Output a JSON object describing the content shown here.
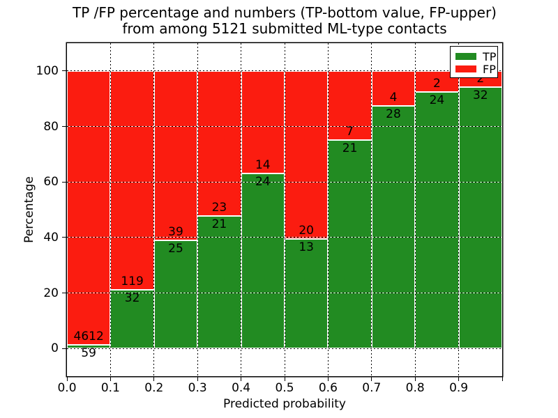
{
  "figure": {
    "title_line1": "TP /FP percentage and numbers (TP-bottom value, FP-upper)",
    "title_line2": "from among 5121 submitted ML-type contacts"
  },
  "chart_data": {
    "type": "bar",
    "stacked": true,
    "normalized": "percent_per_bin",
    "title": "TP /FP percentage and numbers (TP-bottom value, FP-upper) from among 5121 submitted ML-type contacts",
    "xlabel": "Predicted probability",
    "ylabel": "Percentage",
    "bins": [
      "0.0-0.1",
      "0.1-0.2",
      "0.2-0.3",
      "0.3-0.4",
      "0.4-0.5",
      "0.5-0.6",
      "0.6-0.7",
      "0.7-0.8",
      "0.8-0.9",
      "0.9-1.0"
    ],
    "series": [
      {
        "name": "TP",
        "color": "#228b22",
        "values": [
          59,
          32,
          25,
          21,
          24,
          13,
          21,
          28,
          24,
          32
        ]
      },
      {
        "name": "FP",
        "color": "#fb1c10",
        "values": [
          4612,
          119,
          39,
          23,
          14,
          20,
          7,
          4,
          2,
          2
        ]
      }
    ],
    "x_tick_labels": [
      "0.0",
      "0.1",
      "0.2",
      "0.3",
      "0.4",
      "0.5",
      "0.6",
      "0.7",
      "0.8",
      "0.9"
    ],
    "y_tick_values": [
      0,
      20,
      40,
      60,
      80,
      100
    ],
    "ylim": [
      -10,
      110
    ],
    "xlim": [
      0.0,
      1.0
    ],
    "grid": "dotted",
    "legend_position": "upper right"
  }
}
